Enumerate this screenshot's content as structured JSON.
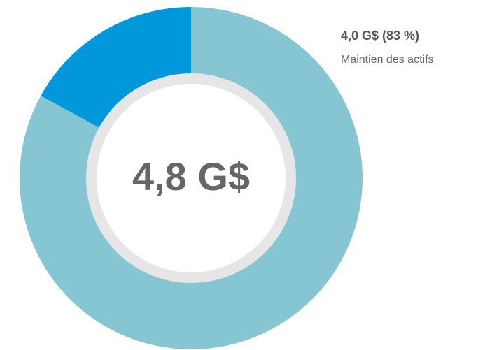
{
  "chart_data": {
    "type": "donut",
    "center_label": "4,8 G$",
    "categories": [
      "Maintien des actifs",
      null
    ],
    "values": [
      83,
      17
    ],
    "value_labels": [
      "4,0 G$ (83 %)",
      null
    ],
    "colors": [
      "#86c6d3",
      "#0098db"
    ]
  }
}
